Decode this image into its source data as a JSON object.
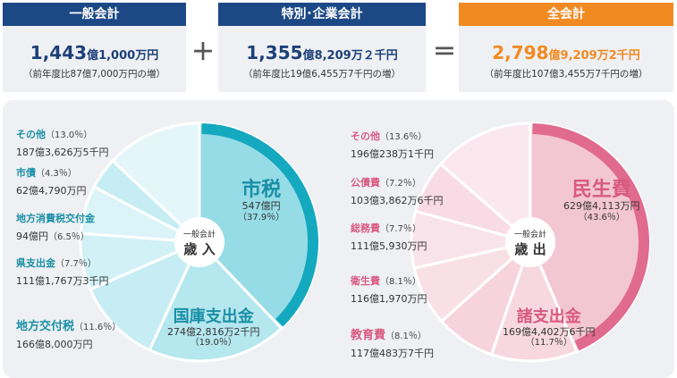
{
  "header": {
    "general": {
      "title": "一般会計",
      "amount_big": "1,443",
      "amount_unit": "億",
      "amount_rest": "1,000万円",
      "note": "（前年度比87億7,000万円の増）"
    },
    "plus": "＋",
    "special": {
      "title": "特別･企業会計",
      "amount_big": "1,355",
      "amount_unit": "億",
      "amount_rest": "8,209万２千円",
      "note": "（前年度比19億6,455万7千円の増）"
    },
    "equals": "＝",
    "total": {
      "title": "全会計",
      "amount_big": "2,798",
      "amount_unit": "億",
      "amount_rest": "9,209万2千円",
      "note": "（前年度比107億3,455万7千円の増）"
    }
  },
  "colors": {
    "navy": "#1c4886",
    "orange": "#f28a22",
    "revenue_accent": "#14a9bf",
    "expenditure_accent": "#e06b8e"
  },
  "chart_data": [
    {
      "type": "pie",
      "center_small": "一般会計",
      "center_big": "歳 入",
      "unit": "%",
      "slices": [
        {
          "name": "市税",
          "value": 37.9,
          "amount": "547億円",
          "percent": "（37.9％）"
        },
        {
          "name": "国庫支出金",
          "value": 19.0,
          "amount": "274億2,816万2千円",
          "percent": "（19.0％）"
        },
        {
          "name": "地方交付税",
          "value": 11.6,
          "amount": "166億8,000万円",
          "percent": "（11.6％）"
        },
        {
          "name": "県支出金",
          "value": 7.7,
          "amount": "111億1,767万3千円",
          "percent": "（7.7％）"
        },
        {
          "name": "地方消費税交付金",
          "value": 6.5,
          "amount": "94億円",
          "percent": "（6.5％）"
        },
        {
          "name": "市債",
          "value": 4.3,
          "amount": "62億4,790万円",
          "percent": "（4.3％）"
        },
        {
          "name": "その他",
          "value": 13.0,
          "amount": "187億3,626万5千円",
          "percent": "（13.0％）"
        }
      ]
    },
    {
      "type": "pie",
      "center_small": "一般会計",
      "center_big": "歳 出",
      "unit": "%",
      "slices": [
        {
          "name": "民生費",
          "value": 43.6,
          "amount": "629億4,113万円",
          "percent": "（43.6％）"
        },
        {
          "name": "諸支出金",
          "value": 11.7,
          "amount": "169億4,402万6千円",
          "percent": "（11.7％）"
        },
        {
          "name": "教育費",
          "value": 8.1,
          "amount": "117億483万7千円",
          "percent": "（8.1％）"
        },
        {
          "name": "衛生費",
          "value": 8.1,
          "amount": "116億1,970万円",
          "percent": "（8.1％）"
        },
        {
          "name": "総務費",
          "value": 7.7,
          "amount": "111億5,930万円",
          "percent": "（7.7％）"
        },
        {
          "name": "公債費",
          "value": 7.2,
          "amount": "103億3,862万6千円",
          "percent": "（7.2％）"
        },
        {
          "name": "その他",
          "value": 13.6,
          "amount": "196億238万1千円",
          "percent": "（13.6％）"
        }
      ]
    }
  ]
}
